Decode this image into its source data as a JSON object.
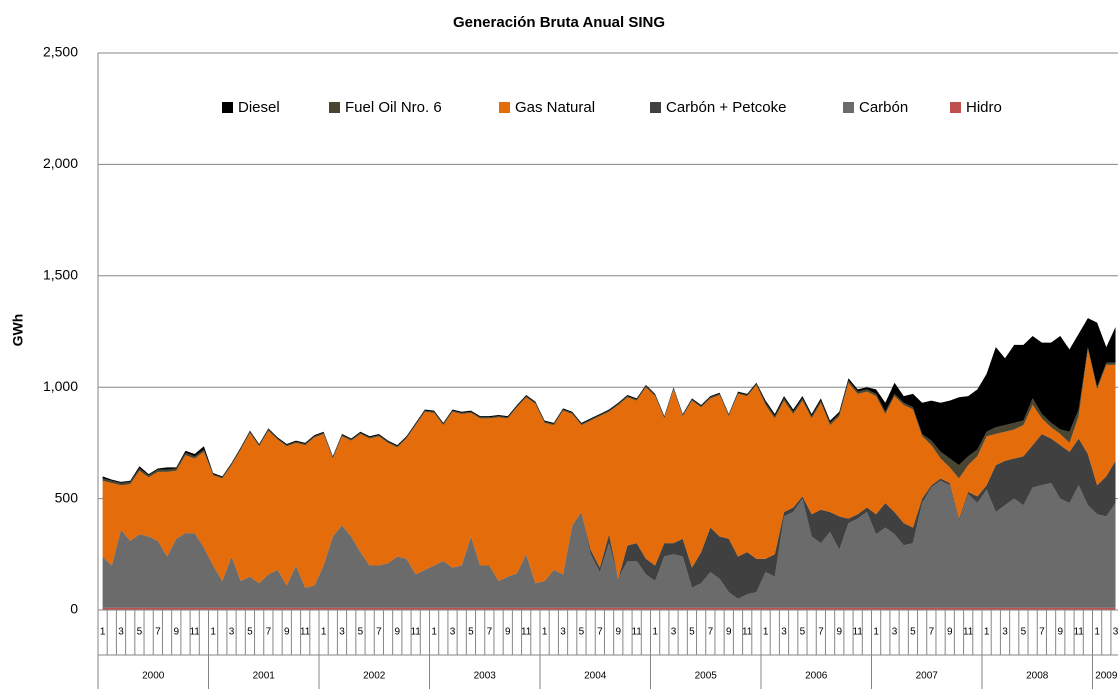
{
  "chart_data": {
    "type": "stacked_area",
    "title": "Generación Bruta Anual SING",
    "y_label": "GWh",
    "ylim": [
      0,
      2500
    ],
    "yticks": [
      0,
      500,
      {
        "value": 1000,
        "label": "1,000"
      },
      {
        "value": 1500,
        "label": "1,500"
      },
      {
        "value": 2000,
        "label": "2,000"
      },
      {
        "value": 2500,
        "label": "2,500"
      }
    ],
    "grid": true,
    "legend": "top",
    "categories": [
      1,
      null,
      3,
      null,
      5,
      null,
      7,
      null,
      9,
      null,
      11,
      null,
      1,
      null,
      3,
      null,
      5,
      null,
      7,
      null,
      9,
      null,
      11,
      null,
      1,
      null,
      3,
      null,
      5,
      null,
      7,
      null,
      9,
      null,
      11,
      null,
      1,
      null,
      3,
      null,
      5,
      null,
      7,
      null,
      9,
      null,
      11,
      null,
      1,
      null,
      3,
      null,
      5,
      null,
      7,
      null,
      9,
      null,
      11,
      null,
      1,
      null,
      3,
      null,
      5,
      null,
      7,
      null,
      9,
      null,
      11,
      null,
      1,
      null,
      3,
      null,
      5,
      null,
      7,
      null,
      9,
      null,
      11,
      null,
      1,
      null,
      3,
      null,
      5,
      null,
      7,
      null,
      9,
      null,
      11,
      null,
      1,
      null,
      3,
      null,
      5,
      null,
      7,
      null,
      9,
      null,
      11,
      null,
      1,
      null,
      3
    ],
    "years": [
      "2000",
      "2001",
      "2002",
      "2003",
      "2004",
      "2005",
      "2006",
      "2007",
      "2008",
      "2009"
    ],
    "series": [
      {
        "name": "Diesel",
        "color": "#000000",
        "values": [
          10,
          5,
          5,
          5,
          10,
          5,
          5,
          10,
          5,
          10,
          10,
          15,
          5,
          5,
          5,
          5,
          5,
          5,
          5,
          5,
          5,
          5,
          5,
          5,
          5,
          5,
          5,
          5,
          5,
          5,
          5,
          5,
          5,
          5,
          5,
          5,
          5,
          5,
          5,
          5,
          5,
          5,
          5,
          5,
          5,
          5,
          5,
          5,
          5,
          5,
          5,
          5,
          5,
          5,
          5,
          5,
          5,
          5,
          5,
          5,
          5,
          5,
          5,
          5,
          5,
          5,
          5,
          5,
          5,
          5,
          5,
          5,
          10,
          10,
          10,
          10,
          10,
          10,
          10,
          10,
          10,
          10,
          10,
          10,
          20,
          40,
          50,
          30,
          60,
          140,
          180,
          220,
          260,
          305,
          270,
          270,
          260,
          360,
          300,
          350,
          340,
          280,
          320,
          360,
          420,
          370,
          340,
          130,
          290,
          70,
          160
        ]
      },
      {
        "name": "Fuel Oil Nro. 6",
        "color": "#4a4530",
        "values": [
          10,
          10,
          10,
          10,
          10,
          10,
          10,
          10,
          10,
          10,
          10,
          10,
          5,
          5,
          5,
          5,
          5,
          5,
          5,
          5,
          5,
          5,
          5,
          5,
          5,
          5,
          5,
          5,
          5,
          5,
          5,
          5,
          5,
          5,
          5,
          5,
          5,
          5,
          5,
          5,
          5,
          5,
          5,
          5,
          5,
          5,
          5,
          5,
          5,
          5,
          5,
          5,
          5,
          5,
          5,
          5,
          5,
          5,
          5,
          5,
          5,
          5,
          5,
          5,
          5,
          5,
          5,
          5,
          5,
          5,
          5,
          5,
          10,
          10,
          10,
          10,
          10,
          10,
          10,
          10,
          10,
          10,
          10,
          10,
          10,
          10,
          10,
          10,
          10,
          10,
          20,
          30,
          40,
          60,
          40,
          30,
          20,
          30,
          30,
          30,
          20,
          30,
          20,
          20,
          20,
          50,
          30,
          10,
          10,
          10,
          10
        ]
      },
      {
        "name": "Gas Natural",
        "color": "#e46c0a",
        "values": [
          340,
          370,
          200,
          255,
          285,
          265,
          310,
          380,
          305,
          350,
          335,
          430,
          405,
          460,
          410,
          590,
          645,
          615,
          645,
          585,
          625,
          550,
          640,
          665,
          590,
          350,
          400,
          430,
          530,
          570,
          580,
          540,
          490,
          540,
          670,
          710,
          685,
          610,
          700,
          680,
          555,
          660,
          660,
          735,
          710,
          745,
          705,
          805,
          710,
          650,
          735,
          500,
          390,
          580,
          680,
          550,
          780,
          665,
          640,
          770,
          760,
          560,
          690,
          550,
          750,
          650,
          580,
          635,
          550,
          730,
          700,
          780,
          690,
          610,
          500,
          420,
          430,
          430,
          480,
          390,
          450,
          610,
          540,
          520,
          530,
          400,
          520,
          530,
          530,
          280,
          180,
          90,
          70,
          180,
          120,
          180,
          220,
          140,
          130,
          130,
          140,
          180,
          70,
          50,
          50,
          40,
          100,
          470,
          430,
          500,
          430
        ]
      },
      {
        "name": "Carbón + Petcoke",
        "color": "#404040",
        "values": [
          0,
          0,
          0,
          0,
          0,
          0,
          0,
          0,
          0,
          0,
          0,
          0,
          0,
          0,
          0,
          0,
          0,
          0,
          0,
          0,
          0,
          0,
          0,
          0,
          0,
          0,
          0,
          0,
          0,
          0,
          0,
          0,
          0,
          0,
          0,
          0,
          0,
          0,
          0,
          0,
          0,
          0,
          0,
          0,
          0,
          0,
          0,
          0,
          0,
          0,
          0,
          0,
          0,
          20,
          20,
          40,
          0,
          70,
          80,
          70,
          70,
          60,
          50,
          80,
          90,
          140,
          200,
          190,
          240,
          190,
          190,
          150,
          60,
          100,
          20,
          20,
          10,
          100,
          150,
          90,
          150,
          20,
          20,
          20,
          90,
          110,
          100,
          100,
          70,
          20,
          10,
          10,
          10,
          10,
          10,
          30,
          20,
          210,
          200,
          180,
          220,
          190,
          230,
          200,
          240,
          230,
          210,
          230,
          130,
          180,
          190
        ]
      },
      {
        "name": "Carbón",
        "color": "#6b6b6b",
        "values": [
          230,
          190,
          350,
          300,
          330,
          320,
          300,
          230,
          310,
          335,
          335,
          270,
          190,
          120,
          230,
          120,
          140,
          110,
          150,
          170,
          100,
          190,
          90,
          100,
          190,
          320,
          370,
          320,
          250,
          190,
          190,
          200,
          230,
          220,
          150,
          170,
          190,
          210,
          180,
          190,
          320,
          190,
          190,
          120,
          140,
          155,
          240,
          110,
          120,
          170,
          150,
          370,
          430,
          240,
          160,
          290,
          130,
          210,
          210,
          150,
          120,
          230,
          240,
          230,
          90,
          110,
          160,
          130,
          70,
          40,
          60,
          70,
          160,
          140,
          410,
          430,
          490,
          320,
          290,
          340,
          260,
          380,
          400,
          430,
          330,
          360,
          330,
          280,
          290,
          470,
          540,
          570,
          550,
          390,
          510,
          470,
          530,
          430,
          460,
          490,
          460,
          540,
          550,
          560,
          490,
          470,
          550,
          460,
          420,
          410,
          470
        ]
      },
      {
        "name": "Hidro",
        "color": "#c0504d",
        "values": [
          10,
          10,
          10,
          10,
          10,
          10,
          10,
          10,
          10,
          10,
          10,
          10,
          10,
          10,
          10,
          10,
          10,
          10,
          10,
          10,
          10,
          10,
          10,
          10,
          10,
          10,
          10,
          10,
          10,
          10,
          10,
          10,
          10,
          10,
          10,
          10,
          10,
          10,
          10,
          10,
          10,
          10,
          10,
          10,
          10,
          10,
          10,
          10,
          10,
          10,
          10,
          10,
          10,
          10,
          10,
          10,
          10,
          10,
          10,
          10,
          10,
          10,
          10,
          10,
          10,
          10,
          10,
          10,
          10,
          10,
          10,
          10,
          10,
          10,
          10,
          10,
          10,
          10,
          10,
          10,
          10,
          10,
          10,
          10,
          10,
          10,
          10,
          10,
          10,
          10,
          10,
          10,
          10,
          10,
          10,
          10,
          10,
          10,
          10,
          10,
          10,
          10,
          10,
          10,
          10,
          10,
          10,
          10,
          10,
          10,
          10
        ]
      }
    ]
  }
}
